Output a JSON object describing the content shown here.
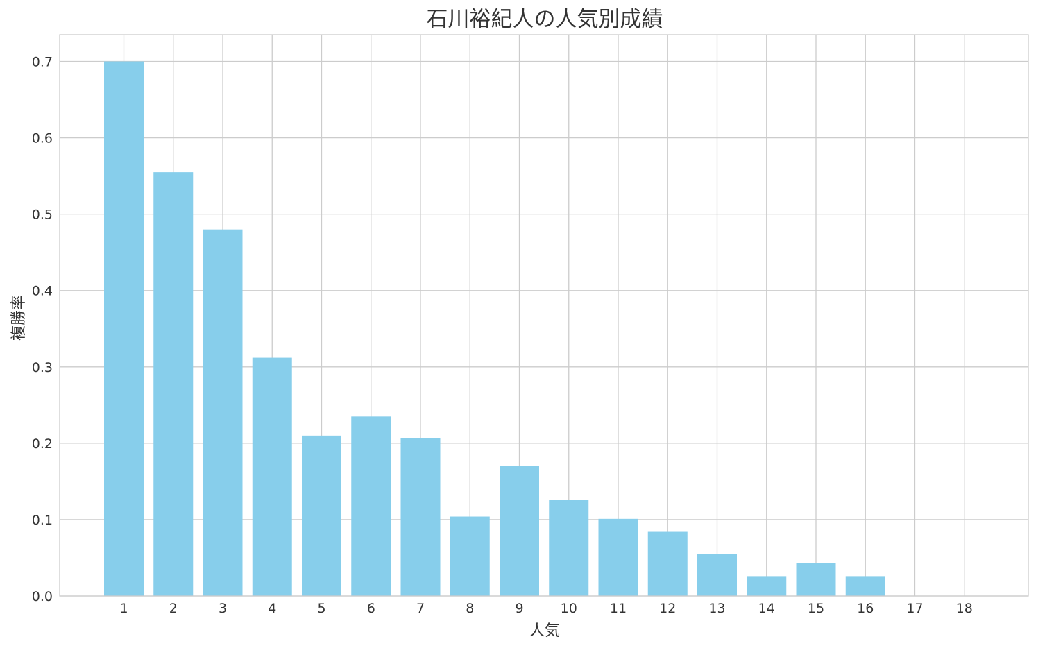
{
  "chart_data": {
    "type": "bar",
    "title": "石川裕紀人の人気別成績",
    "xlabel": "人気",
    "ylabel": "複勝率",
    "categories": [
      "1",
      "2",
      "3",
      "4",
      "5",
      "6",
      "7",
      "8",
      "9",
      "10",
      "11",
      "12",
      "13",
      "14",
      "15",
      "16",
      "17",
      "18"
    ],
    "values": [
      0.7,
      0.555,
      0.48,
      0.312,
      0.21,
      0.235,
      0.207,
      0.104,
      0.17,
      0.126,
      0.101,
      0.084,
      0.055,
      0.026,
      0.043,
      0.026,
      0.0,
      0.0
    ],
    "ylim": [
      0,
      0.735
    ],
    "yticks": [
      "0.0",
      "0.1",
      "0.2",
      "0.3",
      "0.4",
      "0.5",
      "0.6",
      "0.7"
    ],
    "grid": true,
    "bar_color": "#87CEEB",
    "grid_color": "#cccccc",
    "axis_color": "#cccccc"
  }
}
